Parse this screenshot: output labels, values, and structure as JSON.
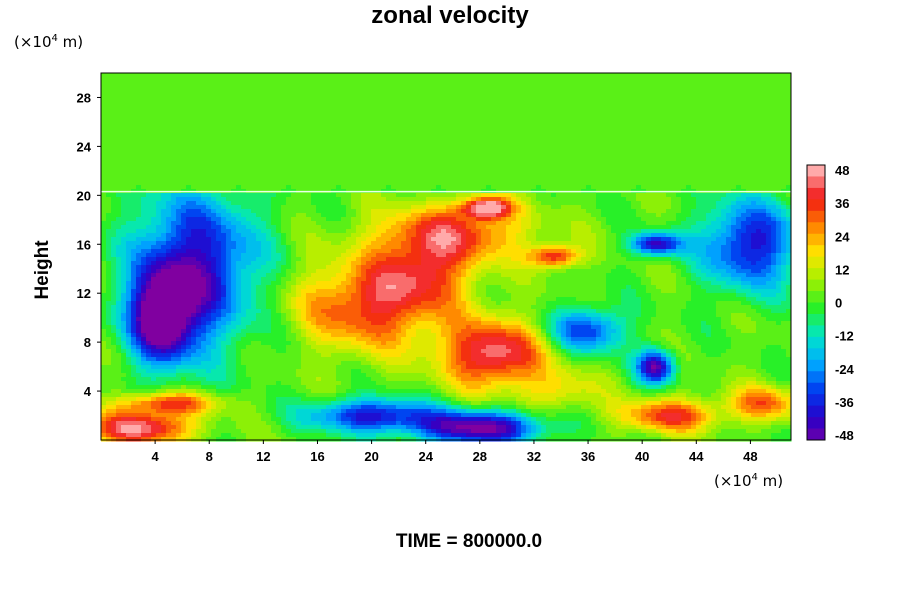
{
  "chart_data": {
    "type": "heatmap",
    "title": "zonal velocity",
    "ylabel": "Height",
    "xlabel": "",
    "x_unit": {
      "prefix": "(×10",
      "exp": "4",
      "suffix": " m)"
    },
    "y_unit": {
      "prefix": "(×10",
      "exp": "4",
      "suffix": " m)"
    },
    "xlim": [
      0,
      51
    ],
    "ylim": [
      0,
      30
    ],
    "x_ticks": [
      4,
      8,
      12,
      16,
      20,
      24,
      28,
      32,
      36,
      40,
      44,
      48
    ],
    "y_ticks": [
      4,
      8,
      12,
      16,
      20,
      24,
      28
    ],
    "colorbar": {
      "min": -48,
      "max": 48,
      "ticks": [
        48,
        36,
        24,
        12,
        0,
        -12,
        -24,
        -36,
        -48
      ]
    },
    "features": [
      {
        "x": 7,
        "y": 14,
        "value": -40,
        "rx": 5,
        "ry": 7
      },
      {
        "x": 4.5,
        "y": 10,
        "value": -48,
        "rx": 2.5,
        "ry": 4
      },
      {
        "x": 20,
        "y": 11,
        "value": 38,
        "rx": 6,
        "ry": 4
      },
      {
        "x": 29,
        "y": 7,
        "value": 46,
        "rx": 4,
        "ry": 3
      },
      {
        "x": 26,
        "y": 17,
        "value": 34,
        "rx": 6,
        "ry": 2.5
      },
      {
        "x": 28.5,
        "y": 19,
        "value": 48,
        "rx": 2,
        "ry": 1
      },
      {
        "x": 33.5,
        "y": 15,
        "value": 40,
        "rx": 2,
        "ry": 1
      },
      {
        "x": 24,
        "y": 14,
        "value": 28,
        "rx": 4,
        "ry": 3
      },
      {
        "x": 3,
        "y": 1,
        "value": 48,
        "rx": 4,
        "ry": 1.5
      },
      {
        "x": 5,
        "y": 3,
        "value": 36,
        "rx": 4,
        "ry": 1
      },
      {
        "x": 28,
        "y": 1,
        "value": -48,
        "rx": 5,
        "ry": 1.5
      },
      {
        "x": 20,
        "y": 2,
        "value": -36,
        "rx": 5,
        "ry": 1.5
      },
      {
        "x": 41,
        "y": 6,
        "value": -44,
        "rx": 1.5,
        "ry": 1.5
      },
      {
        "x": 41,
        "y": 16,
        "value": -40,
        "rx": 2,
        "ry": 1
      },
      {
        "x": 48,
        "y": 16,
        "value": -36,
        "rx": 4,
        "ry": 4
      },
      {
        "x": 42,
        "y": 2,
        "value": 36,
        "rx": 4,
        "ry": 1.5
      },
      {
        "x": 49,
        "y": 3,
        "value": 30,
        "rx": 3,
        "ry": 1.5
      },
      {
        "x": 36,
        "y": 9,
        "value": -30,
        "rx": 3,
        "ry": 2
      },
      {
        "x": 34,
        "y": 4,
        "value": 18,
        "rx": 3,
        "ry": 2
      }
    ],
    "upper_layer": {
      "y_start": 20.3,
      "value": 3
    }
  },
  "footer": "TIME = 800000.0"
}
